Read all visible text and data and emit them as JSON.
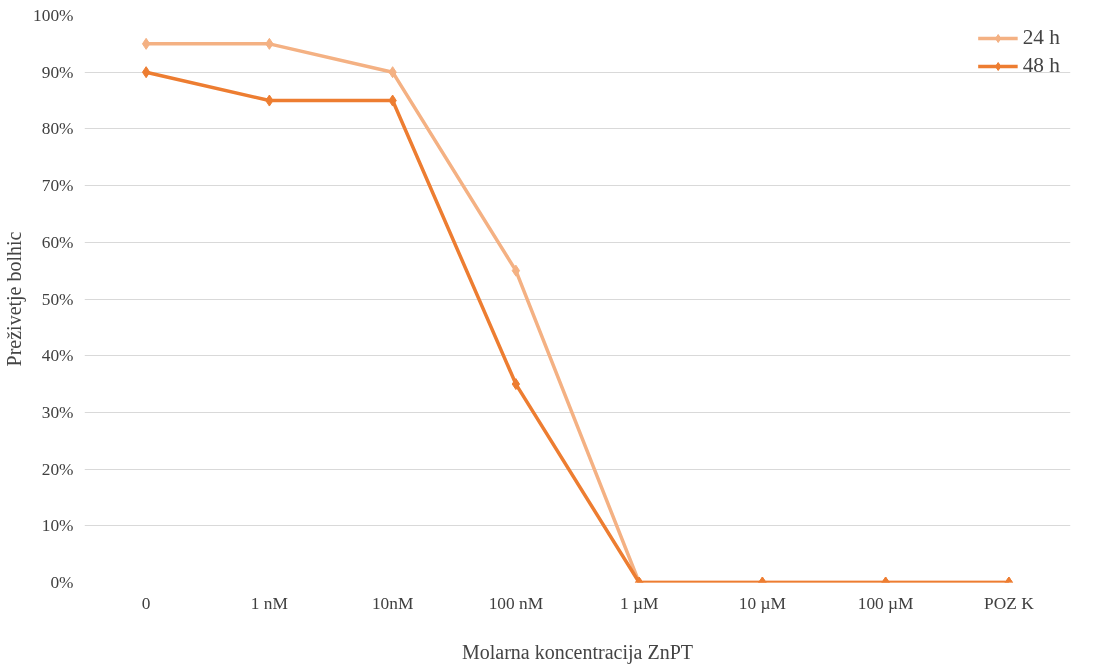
{
  "chart_data": {
    "type": "line",
    "xlabel": "Molarna koncentracija ZnPT",
    "ylabel": "Preživetje bolhic",
    "categories": [
      "0",
      "1 nM",
      "10nM",
      "100 nM",
      "1 µM",
      "10 µM",
      "100 µM",
      "POZ K"
    ],
    "series": [
      {
        "name": "24 h",
        "color": "#f4b183",
        "values": [
          95,
          95,
          90,
          55,
          0,
          0,
          0,
          0
        ]
      },
      {
        "name": "48 h",
        "color": "#ed7d31",
        "values": [
          90,
          85,
          85,
          35,
          0,
          0,
          0,
          0
        ]
      }
    ],
    "ylim": [
      0,
      100
    ],
    "yticks": [
      {
        "value": 0,
        "label": "0%"
      },
      {
        "value": 10,
        "label": "10%"
      },
      {
        "value": 20,
        "label": "20%"
      },
      {
        "value": 30,
        "label": "30%"
      },
      {
        "value": 40,
        "label": "40%"
      },
      {
        "value": 50,
        "label": "50%"
      },
      {
        "value": 60,
        "label": "60%"
      },
      {
        "value": 70,
        "label": "70%"
      },
      {
        "value": 80,
        "label": "80%"
      },
      {
        "value": 90,
        "label": "90%"
      },
      {
        "value": 100,
        "label": "100%"
      }
    ],
    "grid": "y",
    "legend": "top right",
    "marker": "diamond",
    "line_style": "solid"
  }
}
